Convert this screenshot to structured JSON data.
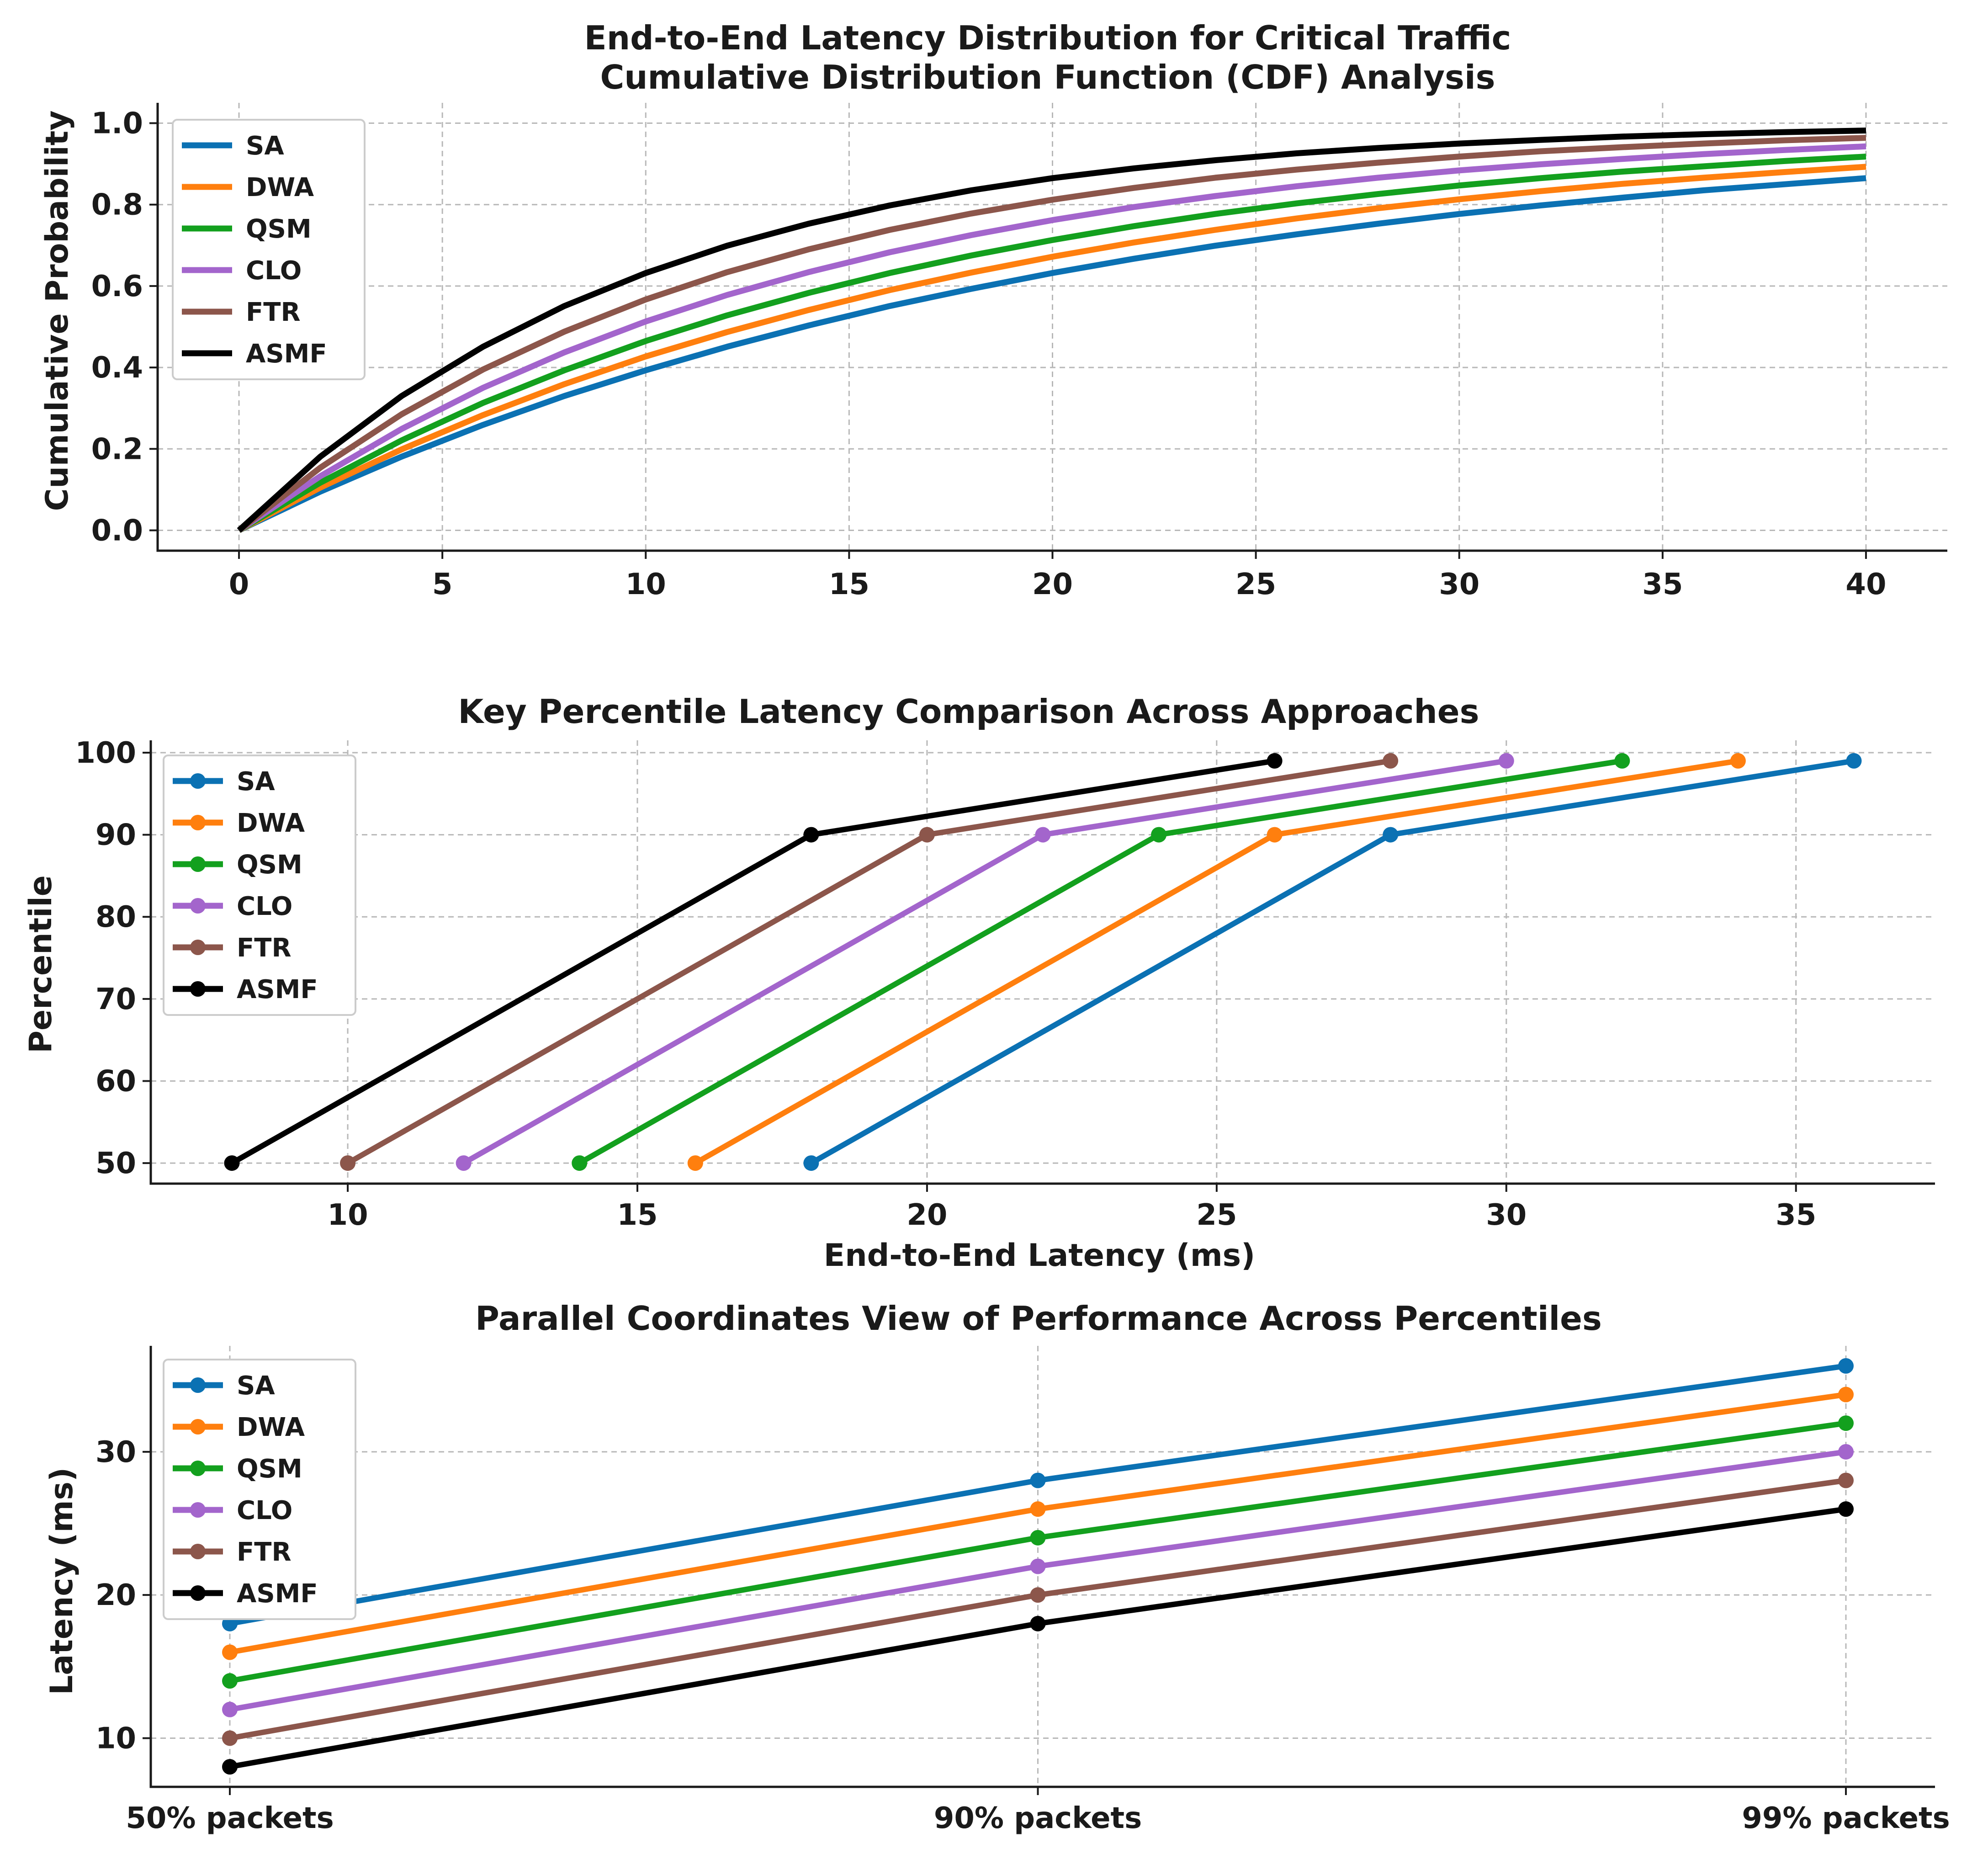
{
  "colors": {
    "SA": "#0b71b3",
    "DWA": "#ff7f0e",
    "QSM": "#13a01e",
    "CLO": "#a365cc",
    "FTR": "#8c564b",
    "ASMF": "#000000"
  },
  "chart_data": [
    {
      "type": "line",
      "title": "End-to-End Latency Distribution for Critical Traffic",
      "subtitle": "Cumulative Distribution Function (CDF) Analysis",
      "xlabel": "",
      "ylabel": "Cumulative Probability",
      "xlim": [
        -2,
        42
      ],
      "ylim": [
        -0.05,
        1.05
      ],
      "xticks": [
        "0",
        "5",
        "10",
        "15",
        "20",
        "25",
        "30",
        "35",
        "40"
      ],
      "yticks": [
        "0.0",
        "0.2",
        "0.4",
        "0.6",
        "0.8",
        "1.0"
      ],
      "grid": true,
      "legend": "upper-left",
      "x": [
        0,
        2,
        4,
        6,
        8,
        10,
        12,
        14,
        16,
        18,
        20,
        22,
        24,
        26,
        28,
        30,
        32,
        34,
        36,
        38,
        40
      ],
      "series": [
        {
          "name": "SA",
          "values": [
            0,
            0.095,
            0.181,
            0.259,
            0.33,
            0.393,
            0.451,
            0.503,
            0.551,
            0.593,
            0.632,
            0.667,
            0.699,
            0.727,
            0.753,
            0.777,
            0.798,
            0.817,
            0.835,
            0.85,
            0.865
          ]
        },
        {
          "name": "DWA",
          "values": [
            0,
            0.105,
            0.199,
            0.283,
            0.359,
            0.427,
            0.487,
            0.541,
            0.59,
            0.633,
            0.672,
            0.707,
            0.738,
            0.766,
            0.791,
            0.813,
            0.833,
            0.851,
            0.866,
            0.88,
            0.893
          ]
        },
        {
          "name": "QSM",
          "values": [
            0,
            0.117,
            0.221,
            0.313,
            0.393,
            0.465,
            0.528,
            0.583,
            0.632,
            0.675,
            0.713,
            0.747,
            0.777,
            0.803,
            0.826,
            0.847,
            0.865,
            0.881,
            0.894,
            0.907,
            0.918
          ]
        },
        {
          "name": "CLO",
          "values": [
            0,
            0.133,
            0.249,
            0.35,
            0.437,
            0.513,
            0.578,
            0.634,
            0.683,
            0.725,
            0.762,
            0.794,
            0.821,
            0.845,
            0.866,
            0.884,
            0.899,
            0.912,
            0.924,
            0.934,
            0.943
          ]
        },
        {
          "name": "FTR",
          "values": [
            0,
            0.154,
            0.285,
            0.395,
            0.488,
            0.567,
            0.634,
            0.69,
            0.738,
            0.778,
            0.812,
            0.841,
            0.866,
            0.886,
            0.903,
            0.918,
            0.931,
            0.941,
            0.95,
            0.958,
            0.964
          ]
        },
        {
          "name": "ASMF",
          "values": [
            0,
            0.181,
            0.33,
            0.451,
            0.551,
            0.632,
            0.699,
            0.753,
            0.798,
            0.835,
            0.865,
            0.889,
            0.909,
            0.926,
            0.939,
            0.95,
            0.959,
            0.967,
            0.973,
            0.978,
            0.982
          ]
        }
      ]
    },
    {
      "type": "line",
      "title": "Key Percentile Latency Comparison Across Approaches",
      "xlabel": "End-to-End Latency (ms)",
      "ylabel": "Percentile",
      "xlim": [
        6.6,
        37.4
      ],
      "ylim": [
        47.5,
        101.5
      ],
      "xticks": [
        "10",
        "15",
        "20",
        "25",
        "30",
        "35"
      ],
      "yticks": [
        "50",
        "60",
        "70",
        "80",
        "90",
        "100"
      ],
      "grid": true,
      "legend": "upper-left",
      "y": [
        50,
        90,
        99
      ],
      "series": [
        {
          "name": "SA",
          "values": [
            18,
            28,
            36
          ]
        },
        {
          "name": "DWA",
          "values": [
            16,
            26,
            34
          ]
        },
        {
          "name": "QSM",
          "values": [
            14,
            24,
            32
          ]
        },
        {
          "name": "CLO",
          "values": [
            12,
            22,
            30
          ]
        },
        {
          "name": "FTR",
          "values": [
            10,
            20,
            28
          ]
        },
        {
          "name": "ASMF",
          "values": [
            8,
            18,
            26
          ]
        }
      ]
    },
    {
      "type": "line",
      "title": "Parallel Coordinates View of Performance Across Percentiles",
      "xlabel": "",
      "ylabel": "Latency (ms)",
      "ylim": [
        6.6,
        37.4
      ],
      "categories": [
        "50% packets",
        "90% packets",
        "99% packets"
      ],
      "yticks": [
        "10",
        "20",
        "30"
      ],
      "grid": true,
      "legend": "upper-left",
      "series": [
        {
          "name": "SA",
          "values": [
            18,
            28,
            36
          ]
        },
        {
          "name": "DWA",
          "values": [
            16,
            26,
            34
          ]
        },
        {
          "name": "QSM",
          "values": [
            14,
            24,
            32
          ]
        },
        {
          "name": "CLO",
          "values": [
            12,
            22,
            30
          ]
        },
        {
          "name": "FTR",
          "values": [
            10,
            20,
            28
          ]
        },
        {
          "name": "ASMF",
          "values": [
            8,
            18,
            26
          ]
        }
      ]
    }
  ]
}
